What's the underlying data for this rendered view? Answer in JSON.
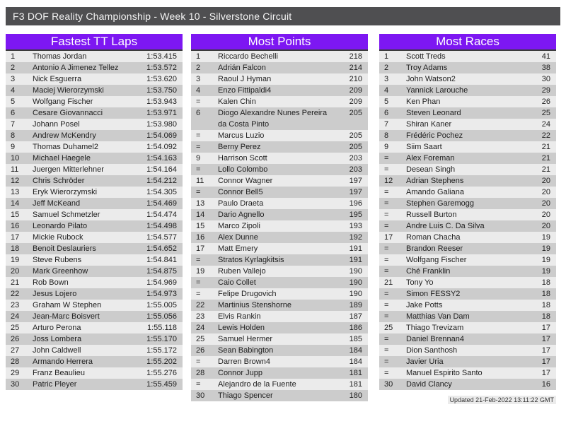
{
  "header": {
    "title": "F3 DOF Reality Championship - Week 10 - Silverstone Circuit"
  },
  "colors": {
    "accent_purple": "#7d17f2",
    "header_gray": "#4f4f51",
    "row_light": "#ebebeb",
    "row_dark": "#cccccc",
    "title_underline": "#3c3c3c"
  },
  "footer": {
    "updated": "Updated 21-Feb-2022 13:11:22 GMT"
  },
  "tables": [
    {
      "id": "fastest-tt-laps",
      "title": "Fastest TT Laps",
      "rows": [
        {
          "rank": "1",
          "name": "Thomas Jordan",
          "value": "1:53.415"
        },
        {
          "rank": "2",
          "name": "Antonio A Jimenez Tellez",
          "value": "1:53.572"
        },
        {
          "rank": "3",
          "name": "Nick Esguerra",
          "value": "1:53.620"
        },
        {
          "rank": "4",
          "name": "Maciej Wierorzymski",
          "value": "1:53.750"
        },
        {
          "rank": "5",
          "name": "Wolfgang Fischer",
          "value": "1:53.943"
        },
        {
          "rank": "6",
          "name": "Cesare Giovannacci",
          "value": "1:53.971"
        },
        {
          "rank": "7",
          "name": "Johann Posel",
          "value": "1:53.980"
        },
        {
          "rank": "8",
          "name": "Andrew McKendry",
          "value": "1:54.069"
        },
        {
          "rank": "9",
          "name": "Thomas Duhamel2",
          "value": "1:54.092"
        },
        {
          "rank": "10",
          "name": "Michael Haegele",
          "value": "1:54.163"
        },
        {
          "rank": "11",
          "name": "Juergen Mitterlehner",
          "value": "1:54.164"
        },
        {
          "rank": "12",
          "name": "Chris Schröder",
          "value": "1:54.212"
        },
        {
          "rank": "13",
          "name": "Eryk Wierorzymski",
          "value": "1:54.305"
        },
        {
          "rank": "14",
          "name": "Jeff McKeand",
          "value": "1:54.469"
        },
        {
          "rank": "15",
          "name": "Samuel Schmetzler",
          "value": "1:54.474"
        },
        {
          "rank": "16",
          "name": "Leonardo Pilato",
          "value": "1:54.498"
        },
        {
          "rank": "17",
          "name": "Mickie Rubock",
          "value": "1:54.577"
        },
        {
          "rank": "18",
          "name": "Benoit Deslauriers",
          "value": "1:54.652"
        },
        {
          "rank": "19",
          "name": "Steve Rubens",
          "value": "1:54.841"
        },
        {
          "rank": "20",
          "name": "Mark Greenhow",
          "value": "1:54.875"
        },
        {
          "rank": "21",
          "name": "Rob Bown",
          "value": "1:54.969"
        },
        {
          "rank": "22",
          "name": "Jesus Lojero",
          "value": "1:54.973"
        },
        {
          "rank": "23",
          "name": "Graham W Stephen",
          "value": "1:55.005"
        },
        {
          "rank": "24",
          "name": "Jean-Marc Boisvert",
          "value": "1:55.056"
        },
        {
          "rank": "25",
          "name": "Arturo Perona",
          "value": "1:55.118"
        },
        {
          "rank": "26",
          "name": "Joss Lombera",
          "value": "1:55.170"
        },
        {
          "rank": "27",
          "name": "John Caldwell",
          "value": "1:55.172"
        },
        {
          "rank": "28",
          "name": "Armando Herrera",
          "value": "1:55.202"
        },
        {
          "rank": "29",
          "name": "Franz Beaulieu",
          "value": "1:55.276"
        },
        {
          "rank": "30",
          "name": "Patric Pleyer",
          "value": "1:55.459"
        }
      ]
    },
    {
      "id": "most-points",
      "title": "Most Points",
      "rows": [
        {
          "rank": "1",
          "name": "Riccardo Bechelli",
          "value": "218"
        },
        {
          "rank": "2",
          "name": "Adrián Falcon",
          "value": "214"
        },
        {
          "rank": "3",
          "name": "Raoul J Hyman",
          "value": "210"
        },
        {
          "rank": "4",
          "name": "Enzo Fittipaldi4",
          "value": "209"
        },
        {
          "rank": "=",
          "name": "Kalen Chin",
          "value": "209"
        },
        {
          "rank": "6",
          "name": "Diogo Alexandre Nunes Pereira da Costa Pinto",
          "value": "205"
        },
        {
          "rank": "=",
          "name": "Marcus Luzio",
          "value": "205"
        },
        {
          "rank": "=",
          "name": "Berny Perez",
          "value": "205"
        },
        {
          "rank": "9",
          "name": "Harrison Scott",
          "value": "203"
        },
        {
          "rank": "=",
          "name": "Lollo Colombo",
          "value": "203"
        },
        {
          "rank": "11",
          "name": "Connor Wagner",
          "value": "197"
        },
        {
          "rank": "=",
          "name": "Connor Bell5",
          "value": "197"
        },
        {
          "rank": "13",
          "name": "Paulo Draeta",
          "value": "196"
        },
        {
          "rank": "14",
          "name": "Dario Agnello",
          "value": "195"
        },
        {
          "rank": "15",
          "name": "Marco Zipoli",
          "value": "193"
        },
        {
          "rank": "16",
          "name": "Alex Dunne",
          "value": "192"
        },
        {
          "rank": "17",
          "name": "Matt Emery",
          "value": "191"
        },
        {
          "rank": "=",
          "name": "Stratos Kyrlagkitsis",
          "value": "191"
        },
        {
          "rank": "19",
          "name": "Ruben Vallejo",
          "value": "190"
        },
        {
          "rank": "=",
          "name": "Caio Collet",
          "value": "190"
        },
        {
          "rank": "=",
          "name": "Felipe Drugovich",
          "value": "190"
        },
        {
          "rank": "22",
          "name": "Martinius Stenshorne",
          "value": "189"
        },
        {
          "rank": "23",
          "name": "Elvis Rankin",
          "value": "187"
        },
        {
          "rank": "24",
          "name": "Lewis Holden",
          "value": "186"
        },
        {
          "rank": "25",
          "name": "Samuel Hermer",
          "value": "185"
        },
        {
          "rank": "26",
          "name": "Sean Babington",
          "value": "184"
        },
        {
          "rank": "=",
          "name": "Darren Brown4",
          "value": "184"
        },
        {
          "rank": "28",
          "name": "Connor Jupp",
          "value": "181"
        },
        {
          "rank": "=",
          "name": "Alejandro de la Fuente",
          "value": "181"
        },
        {
          "rank": "30",
          "name": "Thiago Spencer",
          "value": "180"
        }
      ]
    },
    {
      "id": "most-races",
      "title": "Most Races",
      "rows": [
        {
          "rank": "1",
          "name": "Scott Treds",
          "value": "41"
        },
        {
          "rank": "2",
          "name": "Troy Adams",
          "value": "38"
        },
        {
          "rank": "3",
          "name": "John Watson2",
          "value": "30"
        },
        {
          "rank": "4",
          "name": "Yannick Larouche",
          "value": "29"
        },
        {
          "rank": "5",
          "name": "Ken Phan",
          "value": "26"
        },
        {
          "rank": "6",
          "name": "Steven Leonard",
          "value": "25"
        },
        {
          "rank": "7",
          "name": "Shiran Kaner",
          "value": "24"
        },
        {
          "rank": "8",
          "name": "Frédéric Pochez",
          "value": "22"
        },
        {
          "rank": "9",
          "name": "Siim Saart",
          "value": "21"
        },
        {
          "rank": "=",
          "name": "Alex Foreman",
          "value": "21"
        },
        {
          "rank": "=",
          "name": "Desean Singh",
          "value": "21"
        },
        {
          "rank": "12",
          "name": "Adrian Stephens",
          "value": "20"
        },
        {
          "rank": "=",
          "name": "Amando Galiana",
          "value": "20"
        },
        {
          "rank": "=",
          "name": "Stephen Garemogg",
          "value": "20"
        },
        {
          "rank": "=",
          "name": "Russell Burton",
          "value": "20"
        },
        {
          "rank": "=",
          "name": "Andre Luis C. Da Silva",
          "value": "20"
        },
        {
          "rank": "17",
          "name": "Roman Chacha",
          "value": "19"
        },
        {
          "rank": "=",
          "name": "Brandon Reeser",
          "value": "19"
        },
        {
          "rank": "=",
          "name": "Wolfgang Fischer",
          "value": "19"
        },
        {
          "rank": "=",
          "name": "Ché Franklin",
          "value": "19"
        },
        {
          "rank": "21",
          "name": "Tony Yo",
          "value": "18"
        },
        {
          "rank": "=",
          "name": "Simon FESSY2",
          "value": "18"
        },
        {
          "rank": "=",
          "name": "Jake Potts",
          "value": "18"
        },
        {
          "rank": "=",
          "name": "Matthias Van Dam",
          "value": "18"
        },
        {
          "rank": "25",
          "name": "Thiago Trevizam",
          "value": "17"
        },
        {
          "rank": "=",
          "name": "Daniel Brennan4",
          "value": "17"
        },
        {
          "rank": "=",
          "name": "Dion Santhosh",
          "value": "17"
        },
        {
          "rank": "=",
          "name": "Javier Uria",
          "value": "17"
        },
        {
          "rank": "=",
          "name": "Manuel Espirito Santo",
          "value": "17"
        },
        {
          "rank": "30",
          "name": "David Clancy",
          "value": "16"
        }
      ]
    }
  ]
}
